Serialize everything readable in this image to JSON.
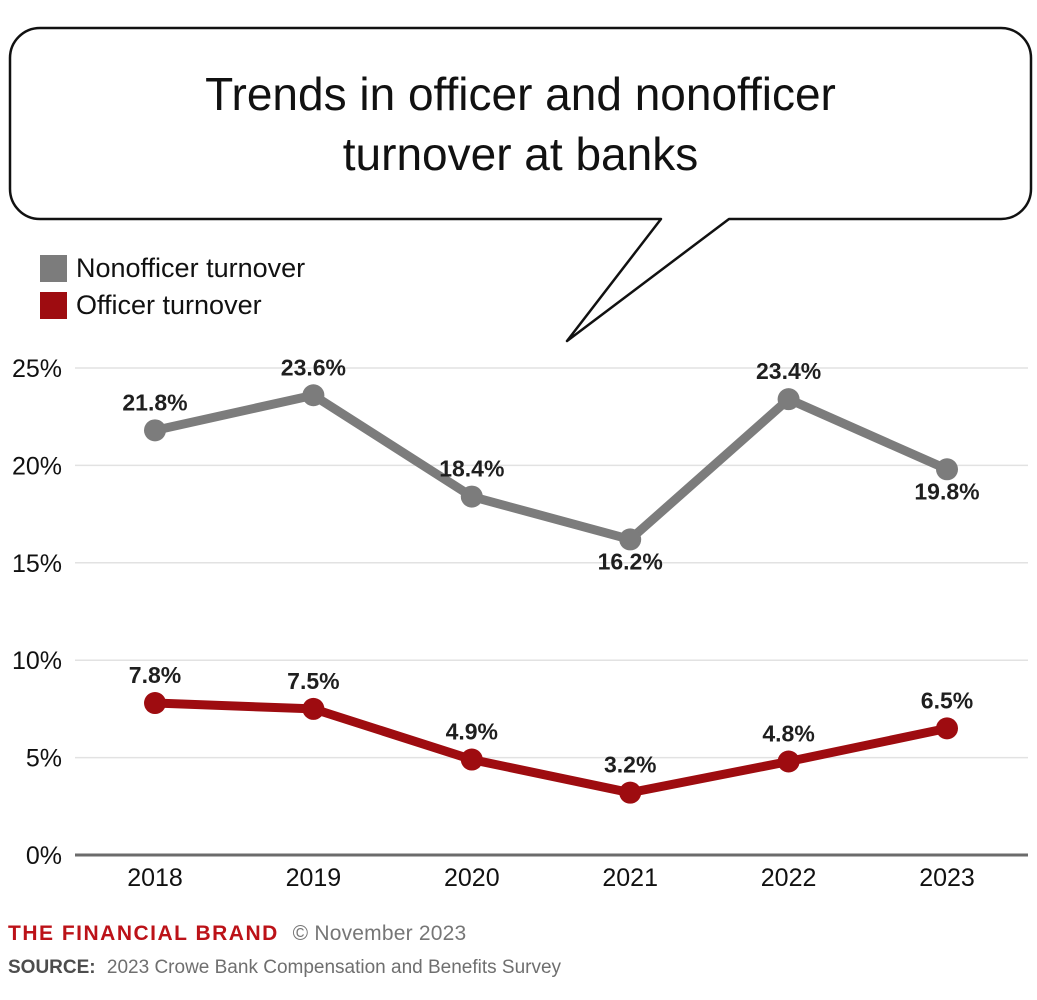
{
  "title": {
    "text": "Trends in officer and nonofficer turnover at banks",
    "lines": [
      "Trends in officer and nonofficer",
      "turnover at banks"
    ]
  },
  "legend": {
    "items": [
      {
        "label": "Nonofficer turnover",
        "color": "#7c7c7c"
      },
      {
        "label": "Officer turnover",
        "color": "#9e0c10"
      }
    ]
  },
  "chart_data": {
    "type": "line",
    "title": "Trends in officer and nonofficer turnover at banks",
    "categories": [
      "2018",
      "2019",
      "2020",
      "2021",
      "2022",
      "2023"
    ],
    "series": [
      {
        "name": "Nonofficer turnover",
        "color": "#7c7c7c",
        "values": [
          21.8,
          23.6,
          18.4,
          16.2,
          23.4,
          19.8
        ],
        "labels": [
          "21.8%",
          "23.6%",
          "18.4%",
          "16.2%",
          "23.4%",
          "19.8%"
        ],
        "label_placement": [
          "above",
          "above",
          "above",
          "below",
          "above",
          "below"
        ]
      },
      {
        "name": "Officer turnover",
        "color": "#9e0c10",
        "values": [
          7.8,
          7.5,
          4.9,
          3.2,
          4.8,
          6.5
        ],
        "labels": [
          "7.8%",
          "7.5%",
          "4.9%",
          "3.2%",
          "4.8%",
          "6.5%"
        ],
        "label_placement": [
          "above",
          "above",
          "above",
          "above",
          "above",
          "above"
        ]
      }
    ],
    "xlabel": "",
    "ylabel": "",
    "ylim": [
      0,
      25
    ],
    "yticks": [
      {
        "value": 25,
        "label": "25%"
      },
      {
        "value": 20,
        "label": "20%"
      },
      {
        "value": 15,
        "label": "15%"
      },
      {
        "value": 10,
        "label": "10%"
      },
      {
        "value": 5,
        "label": "5%"
      },
      {
        "value": 0,
        "label": "0%"
      }
    ],
    "grid": true,
    "legend_position": "top-left"
  },
  "footer": {
    "brand": "THE FINANCIAL BRAND",
    "copyright": "© November 2023",
    "source_label": "SOURCE:",
    "source_text": "2023 Crowe Bank Compensation and Benefits Survey"
  },
  "colors": {
    "nonofficer": "#7c7c7c",
    "officer": "#9e0c10",
    "grid": "#e2e2e2",
    "axis": "#6b6b6b",
    "tick_text": "#111111",
    "value_label": "#1f1f1f",
    "bubble_border": "#111111",
    "brand_red": "#bc1218"
  }
}
